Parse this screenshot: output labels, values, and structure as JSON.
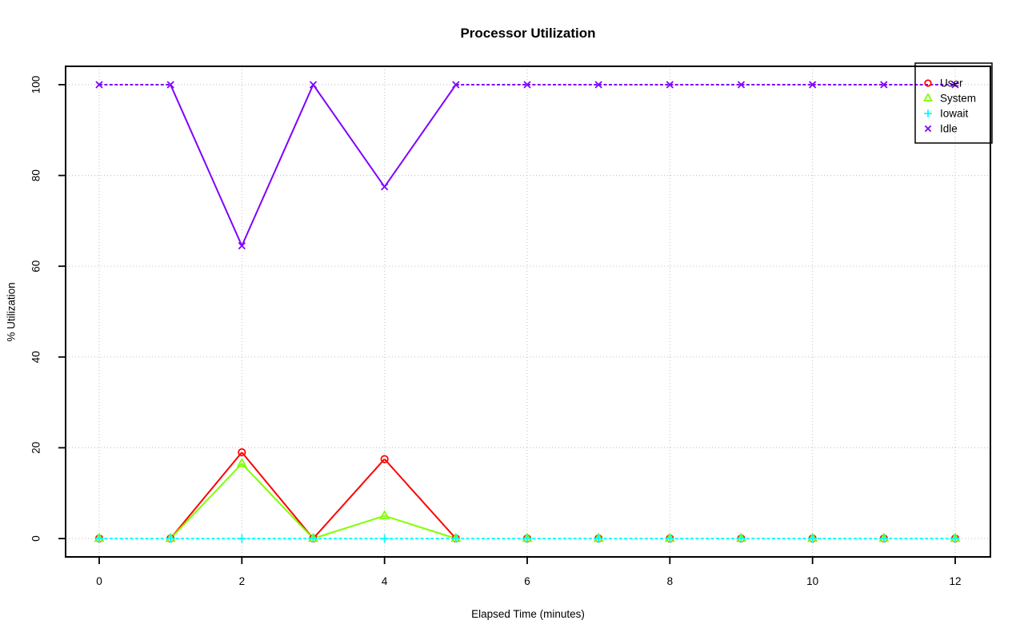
{
  "window": {
    "background": "#ffffff"
  },
  "chart_data": {
    "type": "line",
    "title": "Processor Utilization",
    "xlabel": "Elapsed Time (minutes)",
    "ylabel": "% Utilization",
    "x": [
      0,
      1,
      2,
      3,
      4,
      5,
      6,
      7,
      8,
      9,
      10,
      11,
      12
    ],
    "xlim": [
      0,
      12
    ],
    "ylim": [
      0,
      100
    ],
    "xticks": [
      0,
      2,
      4,
      6,
      8,
      10,
      12
    ],
    "yticks": [
      0,
      20,
      40,
      60,
      80,
      100
    ],
    "grid": "dotted",
    "grid_color": "#c8c8c8",
    "legend_position": "top-right",
    "series": [
      {
        "name": "User",
        "color": "#ff0000",
        "marker": "circle",
        "line": "solid",
        "values": [
          0,
          0,
          19,
          0,
          17.5,
          0,
          0,
          0,
          0,
          0,
          0,
          0,
          0
        ]
      },
      {
        "name": "System",
        "color": "#80ff00",
        "marker": "triangle",
        "line": "solid",
        "values": [
          0,
          0,
          16.5,
          0,
          5,
          0,
          0,
          0,
          0,
          0,
          0,
          0,
          0
        ]
      },
      {
        "name": "Iowait",
        "color": "#00ffff",
        "marker": "plus",
        "line": "dashed",
        "values": [
          0,
          0,
          0,
          0,
          0,
          0,
          0,
          0,
          0,
          0,
          0,
          0,
          0
        ]
      },
      {
        "name": "Idle",
        "color": "#8000ff",
        "marker": "x",
        "line": "dashed",
        "values": [
          100,
          100,
          64.5,
          100,
          77.5,
          100,
          100,
          100,
          100,
          100,
          100,
          100,
          100
        ]
      }
    ]
  }
}
